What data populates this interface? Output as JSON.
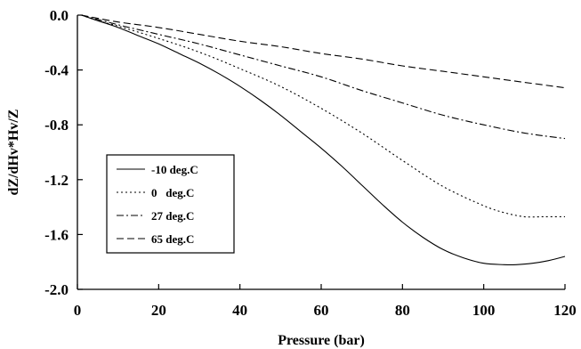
{
  "chart_data": {
    "type": "line",
    "title": "",
    "xlabel": "Pressure (bar)",
    "ylabel": "dZ/dHv*Hv/Z",
    "xlim": [
      0,
      120
    ],
    "ylim": [
      -2.0,
      0.0
    ],
    "xticks": [
      0,
      20,
      40,
      60,
      80,
      100,
      120
    ],
    "xtick_labels": [
      "0",
      "20",
      "40",
      "60",
      "80",
      "100",
      "120"
    ],
    "yticks": [
      0.0,
      -0.4,
      -0.8,
      -1.2,
      -1.6,
      -2.0
    ],
    "ytick_labels": [
      "0.0",
      "-0.4",
      "-0.8",
      "-1.2",
      "-1.6",
      "-2.0"
    ],
    "grid": false,
    "legend_position": "left",
    "series": [
      {
        "name": "-10 deg.C",
        "style": "solid",
        "x": [
          1,
          5,
          10,
          15,
          20,
          25,
          30,
          35,
          40,
          45,
          50,
          55,
          60,
          65,
          70,
          75,
          80,
          85,
          90,
          95,
          100,
          105,
          108,
          112,
          116,
          120
        ],
        "y": [
          0.0,
          -0.04,
          -0.09,
          -0.15,
          -0.21,
          -0.28,
          -0.35,
          -0.43,
          -0.52,
          -0.62,
          -0.73,
          -0.85,
          -0.97,
          -1.1,
          -1.24,
          -1.38,
          -1.51,
          -1.62,
          -1.71,
          -1.77,
          -1.81,
          -1.82,
          -1.82,
          -1.81,
          -1.79,
          -1.76
        ]
      },
      {
        "name": "0   deg.C",
        "style": "dotted",
        "x": [
          1,
          5,
          10,
          20,
          30,
          40,
          50,
          60,
          70,
          80,
          90,
          100,
          105,
          110,
          115,
          120
        ],
        "y": [
          0.0,
          -0.04,
          -0.08,
          -0.17,
          -0.27,
          -0.39,
          -0.52,
          -0.68,
          -0.86,
          -1.06,
          -1.25,
          -1.39,
          -1.44,
          -1.47,
          -1.47,
          -1.47
        ]
      },
      {
        "name": "27 deg.C",
        "style": "dash-dot",
        "x": [
          1,
          10,
          20,
          30,
          40,
          50,
          60,
          70,
          80,
          90,
          100,
          110,
          120
        ],
        "y": [
          0.0,
          -0.07,
          -0.14,
          -0.21,
          -0.29,
          -0.37,
          -0.45,
          -0.55,
          -0.64,
          -0.73,
          -0.8,
          -0.86,
          -0.9
        ]
      },
      {
        "name": "65 deg.C",
        "style": "dashed",
        "x": [
          1,
          10,
          20,
          30,
          40,
          50,
          60,
          70,
          80,
          90,
          100,
          110,
          120
        ],
        "y": [
          0.0,
          -0.05,
          -0.09,
          -0.14,
          -0.19,
          -0.23,
          -0.28,
          -0.32,
          -0.37,
          -0.41,
          -0.45,
          -0.49,
          -0.53
        ]
      }
    ]
  }
}
